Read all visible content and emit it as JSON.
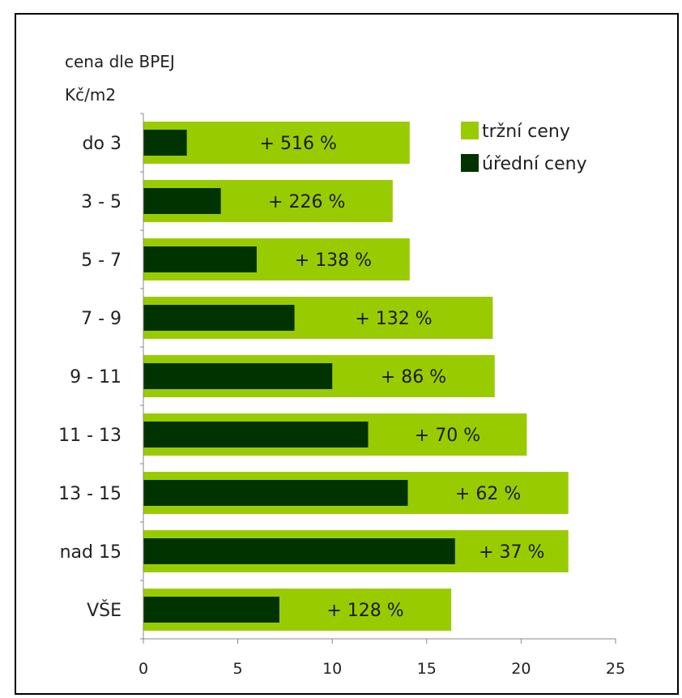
{
  "chart_data": {
    "type": "bar",
    "orientation": "horizontal",
    "ylabel_lines": [
      "cena dle BPEJ",
      "Kč/m2"
    ],
    "categories": [
      "do 3",
      "3 - 5",
      "5 - 7",
      "7 - 9",
      "9 - 11",
      "11 - 13",
      "13 - 15",
      "nad 15",
      "VŠE"
    ],
    "series": [
      {
        "name": "tržní ceny",
        "color": "#99cc00",
        "values": [
          14.1,
          13.2,
          14.1,
          18.5,
          18.6,
          20.3,
          22.5,
          22.5,
          16.3
        ]
      },
      {
        "name": "úřední ceny",
        "color": "#003300",
        "values": [
          2.3,
          4.1,
          6.0,
          8.0,
          10.0,
          11.9,
          14.0,
          16.5,
          7.2
        ]
      }
    ],
    "annotations": [
      "+ 516 %",
      "+ 226 %",
      "+ 138 %",
      "+ 132 %",
      "+ 86 %",
      "+ 70 %",
      "+ 62 %",
      "+ 37 %",
      "+ 128 %"
    ],
    "xticks": [
      0,
      5,
      10,
      15,
      20,
      25
    ],
    "xlim": [
      0,
      25
    ],
    "grid": false,
    "legend_position": "top-right"
  }
}
